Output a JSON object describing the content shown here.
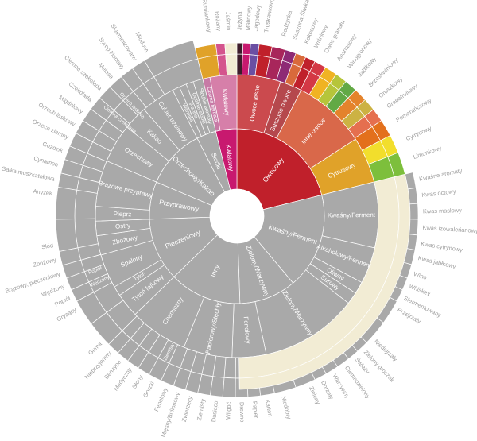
{
  "chart_data": {
    "type": "sunburst",
    "title": "",
    "colors": {
      "base": "#a9a9a9",
      "owocowy": "#c0202b",
      "kwiatowy": "#c8196f",
      "owoce_lesne": "#cb4a4e",
      "suszone_owoce": "#b5484d",
      "inne_owoce": "#d9684a",
      "cytrusowy": "#e0a229",
      "czarna_herbata": "#c77aa6",
      "kwiatowy_mid": "#d67fa9"
    },
    "ring1": [
      {
        "label": "Owocowy",
        "start": 0,
        "end": 76,
        "color": "#c0202b"
      },
      {
        "label": "Kwaśny/Ferment",
        "start": 76,
        "end": 140,
        "color": "#a9a9a9"
      },
      {
        "label": "Zielony/Warzywny",
        "start": 140,
        "end": 178,
        "color": "#a9a9a9"
      },
      {
        "label": "Inny",
        "start": 178,
        "end": 226,
        "color": "#a9a9a9"
      },
      {
        "label": "Pieczeniowy",
        "start": 226,
        "end": 268,
        "color": "#a9a9a9"
      },
      {
        "label": "Przyprawowy",
        "start": 268,
        "end": 293,
        "color": "#a9a9a9"
      },
      {
        "label": "Orzechowy/Kakao",
        "start": 293,
        "end": 333,
        "color": "#a9a9a9"
      },
      {
        "label": "Słodki",
        "start": 333,
        "end": 346,
        "color": "#a9a9a9"
      },
      {
        "label": "Kwiatowy",
        "start": 346,
        "end": 360,
        "color": "#c8196f"
      }
    ],
    "ring2": [
      {
        "label": "Owoce leśne",
        "start": 0,
        "end": 18,
        "color": "#cb4a4e"
      },
      {
        "label": "Suszone owoce",
        "start": 18,
        "end": 27,
        "color": "#b5484d"
      },
      {
        "label": "Inne owoce",
        "start": 27,
        "end": 57,
        "color": "#d9684a"
      },
      {
        "label": "Cytrusowy",
        "start": 57,
        "end": 76,
        "color": "#e0a229"
      },
      {
        "label": "Kwaśny/Ferment",
        "start": 76,
        "end": 103,
        "color": "#a9a9a9"
      },
      {
        "label": "Alkoholowy/Ferment",
        "start": 103,
        "end": 118,
        "color": "#a9a9a9"
      },
      {
        "label": "Oliwny",
        "start": 118,
        "end": 123,
        "color": "#a9a9a9"
      },
      {
        "label": "Surowy",
        "start": 123,
        "end": 128,
        "color": "#a9a9a9"
      },
      {
        "label": "Zielony/Warzywny",
        "start": 128,
        "end": 168,
        "color": "#a9a9a9"
      },
      {
        "label": "Fenolowy",
        "start": 168,
        "end": 182,
        "color": "#a9a9a9"
      },
      {
        "label": "Papierowy/Stęchły",
        "start": 182,
        "end": 202,
        "color": "#a9a9a9"
      },
      {
        "label": "Chemiczny",
        "start": 202,
        "end": 226,
        "color": "#a9a9a9"
      },
      {
        "label": "Tytoń fajkowy",
        "start": 226,
        "end": 236,
        "color": "#a9a9a9"
      },
      {
        "label": "Tytoń",
        "start": 236,
        "end": 240,
        "color": "#a9a9a9"
      },
      {
        "label": "Spalony",
        "start": 240,
        "end": 254,
        "color": "#a9a9a9"
      },
      {
        "label": "Zbożowy",
        "start": 254,
        "end": 262,
        "color": "#a9a9a9"
      },
      {
        "label": "Ostry",
        "start": 262,
        "end": 268,
        "color": "#a9a9a9"
      },
      {
        "label": "Pieprz",
        "start": 268,
        "end": 274,
        "color": "#a9a9a9"
      },
      {
        "label": "Brązowe przyprawy",
        "start": 274,
        "end": 293,
        "color": "#a9a9a9"
      },
      {
        "label": "Orzechowy",
        "start": 293,
        "end": 309,
        "color": "#a9a9a9"
      },
      {
        "label": "Kakao",
        "start": 309,
        "end": 319,
        "color": "#a9a9a9"
      },
      {
        "label": "Cukier trzcinowy",
        "start": 319,
        "end": 333,
        "color": "#a9a9a9"
      },
      {
        "label": "Wanilina",
        "start": 333,
        "end": 336,
        "color": "#a9a9a9"
      },
      {
        "label": "Wanilia",
        "start": 336,
        "end": 339,
        "color": "#a9a9a9"
      },
      {
        "label": "Ogólnie słodki",
        "start": 339,
        "end": 342,
        "color": "#a9a9a9"
      },
      {
        "label": "Słodkie aromaty",
        "start": 342,
        "end": 346,
        "color": "#a9a9a9"
      },
      {
        "label": "Czarna herbata",
        "start": 346,
        "end": 349,
        "color": "#c77aa6"
      },
      {
        "label": "Kwiatowy",
        "start": 349,
        "end": 360,
        "color": "#d67fa9"
      }
    ],
    "ring3": [
      {
        "label": "Ciemna czekolada",
        "start": 305,
        "end": 314
      },
      {
        "label": "Orzech laskowy",
        "start": 314,
        "end": 319
      },
      {
        "label": "Ziemisty",
        "start": 200,
        "end": 213
      },
      {
        "label": "Wędzony",
        "start": 242,
        "end": 247
      },
      {
        "label": "Popiół",
        "start": 247,
        "end": 251
      }
    ],
    "outer_labels": [
      {
        "text": "Rumiankowy",
        "angle": 351.5,
        "color": "#e0a229",
        "swatch": "#e0a229"
      },
      {
        "text": "Różany",
        "angle": 354.5,
        "color": "#c8196f",
        "swatch": "#d4548d"
      },
      {
        "text": "Jaśmin",
        "angle": 357.5,
        "color": "#9e9e9e",
        "swatch": "#f2ecd4"
      },
      {
        "text": "Jeżyna",
        "angle": 0.8,
        "color": "#333333",
        "swatch": "#3d1c2a"
      },
      {
        "text": "Malinowy",
        "angle": 3.3,
        "color": "#c8196f",
        "swatch": "#c8196f"
      },
      {
        "text": "Jagodowy",
        "angle": 5.8,
        "color": "#6a4fa3",
        "swatch": "#6a4fa3"
      },
      {
        "text": "Truskawkowy",
        "angle": 9.0,
        "color": "#c0202b",
        "swatch": "#c0202b"
      },
      {
        "text": "Rodzynka",
        "angle": 14.5,
        "color": "#c8196f",
        "swatch": "#a8265b"
      },
      {
        "text": "Suszona Śliwka",
        "angle": 18.0,
        "color": "#8e2a75",
        "swatch": "#8e2a75"
      },
      {
        "text": "Kokosowy",
        "angle": 21.8,
        "color": "#e0a229",
        "swatch": "#d96a3b"
      },
      {
        "text": "Wiśniowy",
        "angle": 25.0,
        "color": "#c0202b",
        "swatch": "#c0202b"
      },
      {
        "text": "Owoc granatu",
        "angle": 28.5,
        "color": "#c0202b",
        "swatch": "#d43845"
      },
      {
        "text": "Ananasowy",
        "angle": 33.0,
        "color": "#e0a229",
        "swatch": "#f0b323"
      },
      {
        "text": "Winogronowy",
        "angle": 37.0,
        "color": "#8db53a",
        "swatch": "#b6c53a"
      },
      {
        "text": "Jabłkowy",
        "angle": 41.0,
        "color": "#4c9b3a",
        "swatch": "#62a945"
      },
      {
        "text": "Brzoskwiniowy",
        "angle": 45.5,
        "color": "#e0722a",
        "swatch": "#e4832c"
      },
      {
        "text": "Gruszkowy",
        "angle": 50.0,
        "color": "#c9a634",
        "swatch": "#ccb243"
      },
      {
        "text": "Grapefruitowy",
        "angle": 54.0,
        "color": "#d85a2f",
        "swatch": "#e56f4f"
      },
      {
        "text": "Pomarańczowy",
        "angle": 59.0,
        "color": "#e06a1c",
        "swatch": "#e3701c"
      },
      {
        "text": "Cytrynowy",
        "angle": 65.5,
        "color": "#c9b020",
        "swatch": "#f2de2c"
      },
      {
        "text": "Limonkowy",
        "angle": 71.5,
        "color": "#5fa83a",
        "swatch": "#7dbf3c"
      },
      {
        "text": "Kwaśne aromaty",
        "angle": 78.5,
        "color": "#9e9e9e"
      },
      {
        "text": "Kwas octowy",
        "angle": 83.5,
        "color": "#9e9e9e"
      },
      {
        "text": "Kwas masłowy",
        "angle": 88.5,
        "color": "#9e9e9e"
      },
      {
        "text": "Kwas izowalerianowy",
        "angle": 93.5,
        "color": "#9e9e9e"
      },
      {
        "text": "Kwas cytrynowy",
        "angle": 98.5,
        "color": "#9e9e9e"
      },
      {
        "text": "Kwas jabłkowy",
        "angle": 103.0,
        "color": "#9e9e9e"
      },
      {
        "text": "Wino",
        "angle": 108.0,
        "color": "#9e9e9e"
      },
      {
        "text": "Whiskey",
        "angle": 112.0,
        "color": "#9e9e9e"
      },
      {
        "text": "Sfermentowany",
        "angle": 116.0,
        "color": "#9e9e9e"
      },
      {
        "text": "Przejrzały",
        "angle": 120.0,
        "color": "#9e9e9e"
      },
      {
        "text": "Niedojrzały",
        "angle": 132.0,
        "color": "#9e9e9e"
      },
      {
        "text": "Zielony groszek",
        "angle": 136.5,
        "color": "#9e9e9e"
      },
      {
        "text": "Świeży",
        "angle": 140.0,
        "color": "#9e9e9e"
      },
      {
        "text": "Ciemnozielony",
        "angle": 144.0,
        "color": "#9e9e9e"
      },
      {
        "text": "Warzywny",
        "angle": 148.5,
        "color": "#9e9e9e"
      },
      {
        "text": "Dorzały",
        "angle": 152.5,
        "color": "#9e9e9e"
      },
      {
        "text": "Zielony",
        "angle": 156.5,
        "color": "#9e9e9e"
      },
      {
        "text": "Niedobry",
        "angle": 165.5,
        "color": "#9e9e9e"
      },
      {
        "text": "Karton",
        "angle": 170.5,
        "color": "#9e9e9e"
      },
      {
        "text": "Papier",
        "angle": 174.5,
        "color": "#9e9e9e"
      },
      {
        "text": "Drewno",
        "angle": 178.5,
        "color": "#9e9e9e"
      },
      {
        "text": "Wilgoć",
        "angle": 182.5,
        "color": "#9e9e9e"
      },
      {
        "text": "Dusiąco",
        "angle": 186.5,
        "color": "#9e9e9e"
      },
      {
        "text": "Ziemisty",
        "angle": 190.5,
        "color": "#9e9e9e"
      },
      {
        "text": "Zwierzęcy",
        "angle": 194.5,
        "color": "#9e9e9e"
      },
      {
        "text": "Mięsny/Bulionowy",
        "angle": 198.5,
        "color": "#9e9e9e"
      },
      {
        "text": "Fenolowy",
        "angle": 202.5,
        "color": "#9e9e9e"
      },
      {
        "text": "Gorzki",
        "angle": 207.0,
        "color": "#9e9e9e"
      },
      {
        "text": "Słony",
        "angle": 211.0,
        "color": "#9e9e9e"
      },
      {
        "text": "Medyczny",
        "angle": 215.0,
        "color": "#9e9e9e"
      },
      {
        "text": "Benzyna",
        "angle": 219.0,
        "color": "#9e9e9e"
      },
      {
        "text": "Nieprzyjemny",
        "angle": 223.0,
        "color": "#9e9e9e"
      },
      {
        "text": "Guma",
        "angle": 227.0,
        "color": "#9e9e9e"
      },
      {
        "text": "Gryzący",
        "angle": 240.0,
        "color": "#9e9e9e"
      },
      {
        "text": "Popiół",
        "angle": 244.0,
        "color": "#9e9e9e"
      },
      {
        "text": "Wędzony",
        "angle": 248.0,
        "color": "#9e9e9e"
      },
      {
        "text": "Brązowy, pieczeniowy",
        "angle": 252.0,
        "color": "#9e9e9e"
      },
      {
        "text": "Zbożowy",
        "angle": 256.5,
        "color": "#9e9e9e"
      },
      {
        "text": "Słód",
        "angle": 261.0,
        "color": "#9e9e9e"
      },
      {
        "text": "Anyżek",
        "angle": 277.0,
        "color": "#9e9e9e"
      },
      {
        "text": "Gałka muszkatołowa",
        "angle": 281.5,
        "color": "#9e9e9e"
      },
      {
        "text": "Cynamon",
        "angle": 286.0,
        "color": "#9e9e9e"
      },
      {
        "text": "Goździk",
        "angle": 290.5,
        "color": "#9e9e9e"
      },
      {
        "text": "Orzech ziemny",
        "angle": 295.0,
        "color": "#9e9e9e"
      },
      {
        "text": "Orzech laskowy",
        "angle": 299.5,
        "color": "#9e9e9e"
      },
      {
        "text": "Migdałowy",
        "angle": 304.0,
        "color": "#9e9e9e"
      },
      {
        "text": "Czekolada",
        "angle": 308.5,
        "color": "#9e9e9e"
      },
      {
        "text": "Ciemna czekolada",
        "angle": 313.0,
        "color": "#9e9e9e"
      },
      {
        "text": "Melasa",
        "angle": 318.0,
        "color": "#9e9e9e"
      },
      {
        "text": "Syrop klonowy",
        "angle": 322.5,
        "color": "#9e9e9e"
      },
      {
        "text": "Skarmelizowany",
        "angle": 327.0,
        "color": "#9e9e9e"
      },
      {
        "text": "Miodowy",
        "angle": 331.5,
        "color": "#9e9e9e"
      }
    ]
  }
}
